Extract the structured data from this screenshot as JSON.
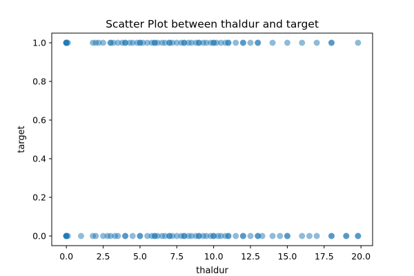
{
  "chart_data": {
    "type": "scatter",
    "title": "Scatter Plot between thaldur and target",
    "xlabel": "thaldur",
    "ylabel": "target",
    "xlim": [
      -0.99,
      20.79
    ],
    "ylim": [
      -0.05,
      1.05
    ],
    "xticks": [
      0.0,
      2.5,
      5.0,
      7.5,
      10.0,
      12.5,
      15.0,
      17.5,
      20.0
    ],
    "xtick_labels": [
      "0.0",
      "2.5",
      "5.0",
      "7.5",
      "10.0",
      "12.5",
      "15.0",
      "17.5",
      "20.0"
    ],
    "yticks": [
      0.0,
      0.2,
      0.4,
      0.6,
      0.8,
      1.0
    ],
    "ytick_labels": [
      "0.0",
      "0.2",
      "0.4",
      "0.6",
      "0.8",
      "1.0"
    ],
    "grid": false,
    "legend": "none",
    "marker_color": "#1f77b4",
    "marker_alpha": 0.5,
    "series": [
      {
        "points": [
          [
            0.0,
            1
          ],
          [
            0.0,
            1
          ],
          [
            0.0,
            1
          ],
          [
            0.0,
            1
          ],
          [
            0.0,
            1
          ],
          [
            0.1,
            1
          ],
          [
            1.8,
            1
          ],
          [
            2.0,
            1
          ],
          [
            2.2,
            1
          ],
          [
            2.5,
            1
          ],
          [
            3.0,
            1
          ],
          [
            3.0,
            1
          ],
          [
            3.2,
            1
          ],
          [
            3.5,
            1
          ],
          [
            3.8,
            1
          ],
          [
            4.0,
            1
          ],
          [
            4.0,
            1
          ],
          [
            4.3,
            1
          ],
          [
            4.5,
            1
          ],
          [
            4.8,
            1
          ],
          [
            5.0,
            1
          ],
          [
            5.0,
            1
          ],
          [
            5.2,
            1
          ],
          [
            5.5,
            1
          ],
          [
            5.8,
            1
          ],
          [
            6.0,
            1
          ],
          [
            6.0,
            1
          ],
          [
            6.2,
            1
          ],
          [
            6.5,
            1
          ],
          [
            6.7,
            1
          ],
          [
            7.0,
            1
          ],
          [
            7.0,
            1
          ],
          [
            7.2,
            1
          ],
          [
            7.5,
            1
          ],
          [
            7.8,
            1
          ],
          [
            8.0,
            1
          ],
          [
            8.0,
            1
          ],
          [
            8.3,
            1
          ],
          [
            8.5,
            1
          ],
          [
            8.8,
            1
          ],
          [
            9.0,
            1
          ],
          [
            9.0,
            1
          ],
          [
            9.3,
            1
          ],
          [
            9.5,
            1
          ],
          [
            9.8,
            1
          ],
          [
            10.0,
            1
          ],
          [
            10.0,
            1
          ],
          [
            10.2,
            1
          ],
          [
            10.5,
            1
          ],
          [
            10.8,
            1
          ],
          [
            11.0,
            1
          ],
          [
            11.0,
            1
          ],
          [
            11.5,
            1
          ],
          [
            12.0,
            1
          ],
          [
            12.0,
            1
          ],
          [
            12.5,
            1
          ],
          [
            13.0,
            1
          ],
          [
            13.0,
            1
          ],
          [
            14.0,
            1
          ],
          [
            15.0,
            1
          ],
          [
            16.0,
            1
          ],
          [
            17.0,
            1
          ],
          [
            18.0,
            1
          ],
          [
            18.0,
            1
          ],
          [
            19.8,
            1
          ],
          [
            0.0,
            0
          ],
          [
            0.0,
            0
          ],
          [
            0.0,
            0
          ],
          [
            0.0,
            0
          ],
          [
            0.0,
            0
          ],
          [
            0.1,
            0
          ],
          [
            1.0,
            0
          ],
          [
            1.8,
            0
          ],
          [
            2.0,
            0
          ],
          [
            2.5,
            0
          ],
          [
            2.8,
            0
          ],
          [
            3.0,
            0
          ],
          [
            3.3,
            0
          ],
          [
            3.5,
            0
          ],
          [
            4.0,
            0
          ],
          [
            4.0,
            0
          ],
          [
            4.5,
            0
          ],
          [
            5.0,
            0
          ],
          [
            5.0,
            0
          ],
          [
            5.5,
            0
          ],
          [
            5.8,
            0
          ],
          [
            6.0,
            0
          ],
          [
            6.0,
            0
          ],
          [
            6.2,
            0
          ],
          [
            6.5,
            0
          ],
          [
            6.7,
            0
          ],
          [
            7.0,
            0
          ],
          [
            7.0,
            0
          ],
          [
            7.2,
            0
          ],
          [
            7.5,
            0
          ],
          [
            7.8,
            0
          ],
          [
            8.0,
            0
          ],
          [
            8.0,
            0
          ],
          [
            8.3,
            0
          ],
          [
            8.5,
            0
          ],
          [
            8.8,
            0
          ],
          [
            9.0,
            0
          ],
          [
            9.0,
            0
          ],
          [
            9.3,
            0
          ],
          [
            9.5,
            0
          ],
          [
            9.8,
            0
          ],
          [
            10.0,
            0
          ],
          [
            10.0,
            0
          ],
          [
            10.3,
            0
          ],
          [
            10.5,
            0
          ],
          [
            10.8,
            0
          ],
          [
            11.0,
            0
          ],
          [
            11.0,
            0
          ],
          [
            11.5,
            0
          ],
          [
            12.0,
            0
          ],
          [
            12.0,
            0
          ],
          [
            12.5,
            0
          ],
          [
            13.0,
            0
          ],
          [
            13.0,
            0
          ],
          [
            13.3,
            0
          ],
          [
            14.0,
            0
          ],
          [
            14.5,
            0
          ],
          [
            15.0,
            0
          ],
          [
            15.0,
            0
          ],
          [
            16.0,
            0
          ],
          [
            16.5,
            0
          ],
          [
            17.0,
            0
          ],
          [
            18.0,
            0
          ],
          [
            18.0,
            0
          ],
          [
            19.0,
            0
          ],
          [
            19.0,
            0
          ],
          [
            19.8,
            0
          ],
          [
            19.8,
            0
          ]
        ]
      }
    ]
  }
}
